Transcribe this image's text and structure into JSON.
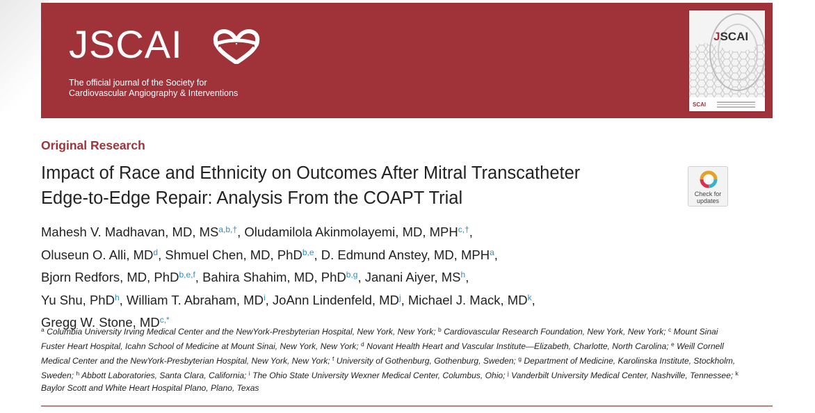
{
  "header": {
    "logo_text": "JSCAI",
    "tagline_line1": "The official journal of the Society for",
    "tagline_line2": "Cardiovascular Angiography & Interventions",
    "cover": {
      "title_prefix": "J",
      "title_rest": "SCAI",
      "footer_logo": "SCAI"
    },
    "banner_color": "#a0323a"
  },
  "article": {
    "category": "Original Research",
    "title_line1": "Impact of Race and Ethnicity on Outcomes After Mitral Transcatheter",
    "title_line2": "Edge-to-Edge Repair: Analysis From the COAPT Trial"
  },
  "check_for_updates": {
    "line1": "Check for",
    "line2": "updates"
  },
  "authors": [
    {
      "name": "Mahesh V. Madhavan, MD, MS",
      "sup": "a,b,†",
      "sep": ","
    },
    {
      "name": "Oludamilola Akinmolayemi, MD, MPH",
      "sup": "c,†",
      "sep": ","
    },
    {
      "name": "Oluseun O. Alli, MD",
      "sup": "d",
      "sep": ","
    },
    {
      "name": "Shmuel Chen, MD, PhD",
      "sup": "b,e",
      "sep": ","
    },
    {
      "name": "D. Edmund Anstey, MD, MPH",
      "sup": "a",
      "sep": ","
    },
    {
      "name": "Bjorn Redfors, MD, PhD",
      "sup": "b,e,f",
      "sep": ","
    },
    {
      "name": "Bahira Shahim, MD, PhD",
      "sup": "b,g",
      "sep": ","
    },
    {
      "name": "Janani Aiyer, MS",
      "sup": "h",
      "sep": ","
    },
    {
      "name": "Yu Shu, PhD",
      "sup": "h",
      "sep": ","
    },
    {
      "name": "William T. Abraham, MD",
      "sup": "i",
      "sep": ","
    },
    {
      "name": "JoAnn Lindenfeld, MD",
      "sup": "j",
      "sep": ","
    },
    {
      "name": "Michael J. Mack, MD",
      "sup": "k",
      "sep": ","
    },
    {
      "name": "Gregg W. Stone, MD",
      "sup": "c,*",
      "sep": ""
    }
  ],
  "affiliations": [
    {
      "sup": "a",
      "text": "Columbia University Irving Medical Center and the NewYork-Presbyterian Hospital, New York, New York;"
    },
    {
      "sup": "b",
      "text": "Cardiovascular Research Foundation, New York, New York;"
    },
    {
      "sup": "c",
      "text": "Mount Sinai Fuster Heart Hospital, Icahn School of Medicine at Mount Sinai, New York, New York;"
    },
    {
      "sup": "d",
      "text": "Novant Health Heart and Vascular Institute—Elizabeth, Charlotte, North Carolina;"
    },
    {
      "sup": "e",
      "text": "Weill Cornell Medical Center and the NewYork-Presbyterian Hospital, New York, New York;"
    },
    {
      "sup": "f",
      "text": "University of Gothenburg, Gothenburg, Sweden;"
    },
    {
      "sup": "g",
      "text": "Department of Medicine, Karolinska Institute, Stockholm, Sweden;"
    },
    {
      "sup": "h",
      "text": "Abbott Laboratories, Santa Clara, California;"
    },
    {
      "sup": "i",
      "text": "The Ohio State University Wexner Medical Center, Columbus, Ohio;"
    },
    {
      "sup": "j",
      "text": "Vanderbilt University Medical Center, Nashville, Tennessee;"
    },
    {
      "sup": "k",
      "text": "Baylor Scott and White Heart Hospital Plano, Plano, Texas"
    }
  ]
}
